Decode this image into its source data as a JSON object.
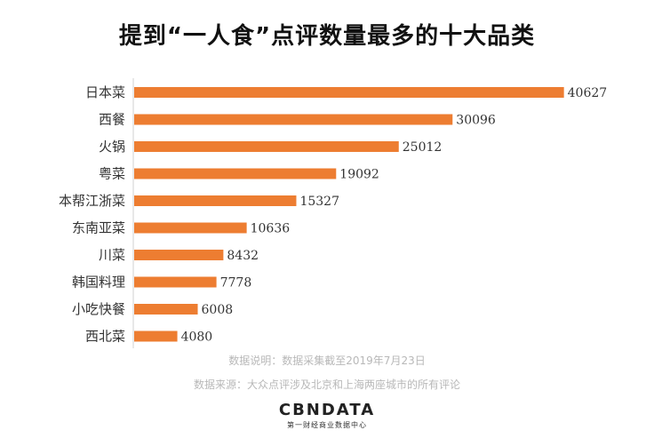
{
  "chart_data": {
    "type": "bar",
    "orientation": "horizontal",
    "title": "提到“一人食”点评数量最多的十大品类",
    "categories": [
      "日本菜",
      "西餐",
      "火锅",
      "粤菜",
      "本帮江浙菜",
      "东南亚菜",
      "川菜",
      "韩国料理",
      "小吃快餐",
      "西北菜"
    ],
    "values": [
      40627,
      30096,
      25012,
      19092,
      15327,
      10636,
      8432,
      7778,
      6008,
      4080
    ],
    "xlim": [
      0,
      42000
    ],
    "bar_color": "#ED7D31",
    "grid": false,
    "legend": "none"
  },
  "notes": {
    "data_note": "数据说明：数据采集截至2019年7月23日",
    "data_source": "数据来源：大众点评涉及北京和上海两座城市的所有评论"
  },
  "brand": {
    "logo": "CBNDATA",
    "subtitle": "第一财经商业数据中心"
  }
}
